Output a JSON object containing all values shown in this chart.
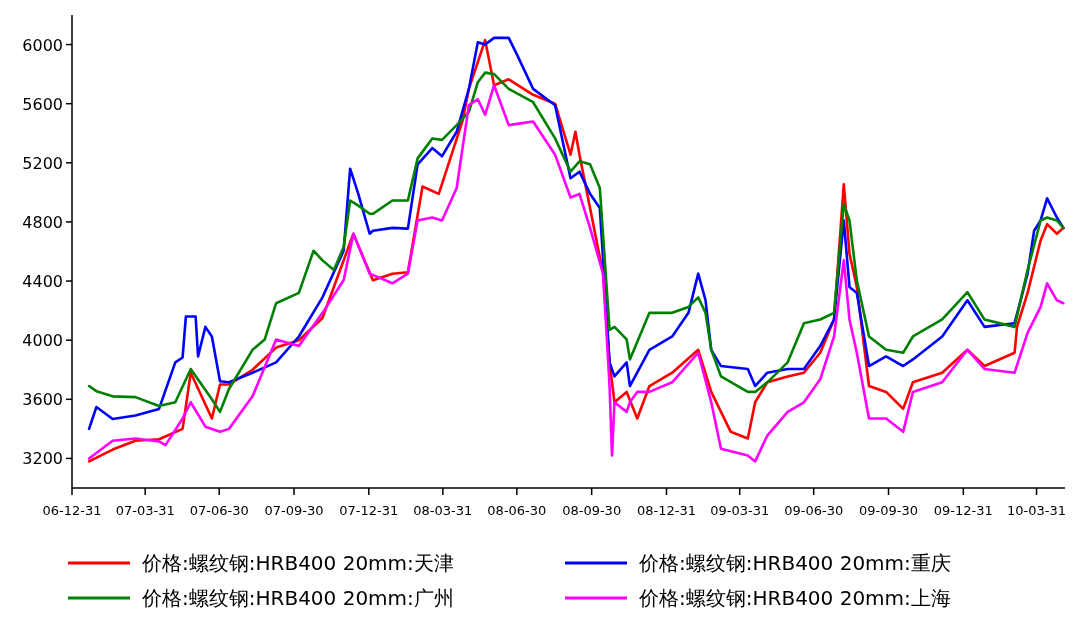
{
  "chart_data": {
    "type": "line",
    "xlim": [
      "2006-12-31",
      "2010-05-05"
    ],
    "ylim": [
      3000,
      6200
    ],
    "yticks": [
      3200,
      3600,
      4000,
      4400,
      4800,
      5200,
      5600,
      6000
    ],
    "xticks": [
      {
        "value": "2006-12-31",
        "label": "06-12-31"
      },
      {
        "value": "2007-03-31",
        "label": "07-03-31"
      },
      {
        "value": "2007-06-30",
        "label": "07-06-30"
      },
      {
        "value": "2007-09-30",
        "label": "07-09-30"
      },
      {
        "value": "2007-12-31",
        "label": "07-12-31"
      },
      {
        "value": "2008-03-31",
        "label": "08-03-31"
      },
      {
        "value": "2008-06-30",
        "label": "08-06-30"
      },
      {
        "value": "2008-09-30",
        "label": "08-09-30"
      },
      {
        "value": "2008-12-31",
        "label": "08-12-31"
      },
      {
        "value": "2009-03-31",
        "label": "09-03-31"
      },
      {
        "value": "2009-06-30",
        "label": "09-06-30"
      },
      {
        "value": "2009-09-30",
        "label": "09-09-30"
      },
      {
        "value": "2009-12-31",
        "label": "09-12-31"
      },
      {
        "value": "2010-03-31",
        "label": "10-03-31"
      }
    ],
    "legend": "bottom",
    "series": [
      {
        "name": "价格:螺纹钢:HRB400 20mm:天津",
        "color": "#ff0000",
        "x": [
          "2007-01-21",
          "2007-02-19",
          "2007-03-19",
          "2007-04-17",
          "2007-05-16",
          "2007-05-26",
          "2007-06-21",
          "2007-07-01",
          "2007-07-12",
          "2007-08-10",
          "2007-09-08",
          "2007-10-06",
          "2007-11-04",
          "2007-12-12",
          "2008-01-05",
          "2008-01-29",
          "2008-02-17",
          "2008-03-06",
          "2008-03-26",
          "2008-04-24",
          "2008-05-02",
          "2008-05-22",
          "2008-06-02",
          "2008-06-20",
          "2008-07-20",
          "2008-08-16",
          "2008-09-04",
          "2008-09-10",
          "2008-09-15",
          "2008-09-28",
          "2008-10-14",
          "2008-10-22",
          "2008-10-28",
          "2008-11-12",
          "2008-11-25",
          "2008-12-10",
          "2009-01-07",
          "2009-02-08",
          "2009-02-24",
          "2009-03-08",
          "2009-03-20",
          "2009-04-10",
          "2009-04-19",
          "2009-05-04",
          "2009-05-29",
          "2009-06-18",
          "2009-07-08",
          "2009-07-25",
          "2009-08-06",
          "2009-08-13",
          "2009-08-22",
          "2009-09-06",
          "2009-09-27",
          "2009-10-18",
          "2009-10-30",
          "2009-12-05",
          "2010-01-05",
          "2010-01-26",
          "2010-03-04",
          "2010-03-07",
          "2010-03-20",
          "2010-04-05",
          "2010-04-13",
          "2010-04-25",
          "2010-05-03"
        ],
        "values": [
          3180,
          3260,
          3320,
          3330,
          3400,
          3780,
          3470,
          3700,
          3700,
          3800,
          3950,
          4000,
          4150,
          4720,
          4405,
          4450,
          4460,
          5040,
          4990,
          5480,
          5700,
          6030,
          5725,
          5765,
          5660,
          5600,
          5255,
          5410,
          5255,
          4895,
          4450,
          3850,
          3580,
          3650,
          3470,
          3690,
          3780,
          3935,
          3650,
          3515,
          3380,
          3335,
          3580,
          3715,
          3755,
          3780,
          3915,
          4140,
          5055,
          4585,
          4360,
          3690,
          3650,
          3535,
          3715,
          3780,
          3935,
          3825,
          3915,
          4090,
          4320,
          4675,
          4785,
          4720,
          4760
        ]
      },
      {
        "name": "价格:螺纹钢:HRB400 20mm:重庆",
        "color": "#0000ff",
        "x": [
          "2007-01-21",
          "2007-01-30",
          "2007-02-19",
          "2007-03-19",
          "2007-04-17",
          "2007-05-07",
          "2007-05-16",
          "2007-05-20",
          "2007-06-01",
          "2007-06-04",
          "2007-06-13",
          "2007-06-21",
          "2007-07-01",
          "2007-07-12",
          "2007-08-10",
          "2007-09-08",
          "2007-10-06",
          "2007-11-04",
          "2007-11-30",
          "2007-12-08",
          "2007-12-18",
          "2008-01-01",
          "2008-01-05",
          "2008-01-29",
          "2008-02-17",
          "2008-02-29",
          "2008-03-18",
          "2008-03-30",
          "2008-04-17",
          "2008-05-02",
          "2008-05-13",
          "2008-05-22",
          "2008-06-02",
          "2008-06-20",
          "2008-06-29",
          "2008-07-20",
          "2008-08-16",
          "2008-09-04",
          "2008-09-15",
          "2008-09-28",
          "2008-10-10",
          "2008-10-22",
          "2008-10-28",
          "2008-11-12",
          "2008-11-16",
          "2008-12-10",
          "2009-01-07",
          "2009-01-27",
          "2009-02-08",
          "2009-02-17",
          "2009-02-24",
          "2009-03-08",
          "2009-04-10",
          "2009-04-19",
          "2009-05-04",
          "2009-05-29",
          "2009-06-18",
          "2009-07-08",
          "2009-07-25",
          "2009-08-06",
          "2009-08-13",
          "2009-08-22",
          "2009-09-06",
          "2009-09-27",
          "2009-10-18",
          "2009-10-30",
          "2009-12-05",
          "2010-01-05",
          "2010-01-26",
          "2010-03-04",
          "2010-03-20",
          "2010-03-28",
          "2010-04-05",
          "2010-04-13",
          "2010-04-25",
          "2010-05-03"
        ],
        "values": [
          3400,
          3548,
          3467,
          3490,
          3535,
          3850,
          3883,
          4160,
          4160,
          3890,
          4090,
          4025,
          3722,
          3715,
          3780,
          3850,
          4025,
          4290,
          4605,
          5160,
          4990,
          4720,
          4740,
          4760,
          4755,
          5190,
          5300,
          5245,
          5410,
          5700,
          6015,
          6000,
          6045,
          6045,
          5945,
          5700,
          5590,
          5095,
          5140,
          4990,
          4895,
          3850,
          3755,
          3850,
          3690,
          3935,
          4025,
          4185,
          4450,
          4270,
          3935,
          3825,
          3805,
          3690,
          3780,
          3805,
          3805,
          3960,
          4140,
          4810,
          4360,
          4320,
          3825,
          3890,
          3825,
          3870,
          4025,
          4270,
          4090,
          4115,
          4450,
          4740,
          4810,
          4960,
          4830,
          4760
        ]
      },
      {
        "name": "价格:螺纹钢:HRB400 20mm:广州",
        "color": "#008000",
        "x": [
          "2007-01-21",
          "2007-01-30",
          "2007-02-19",
          "2007-03-19",
          "2007-04-17",
          "2007-05-07",
          "2007-05-26",
          "2007-06-21",
          "2007-07-01",
          "2007-07-12",
          "2007-08-10",
          "2007-08-25",
          "2007-09-08",
          "2007-10-06",
          "2007-10-24",
          "2007-11-04",
          "2007-11-18",
          "2007-11-30",
          "2007-12-08",
          "2007-12-18",
          "2008-01-01",
          "2008-01-05",
          "2008-01-29",
          "2008-02-17",
          "2008-02-29",
          "2008-03-18",
          "2008-03-30",
          "2008-04-17",
          "2008-05-02",
          "2008-05-13",
          "2008-05-22",
          "2008-06-02",
          "2008-06-20",
          "2008-07-20",
          "2008-08-16",
          "2008-09-04",
          "2008-09-15",
          "2008-09-28",
          "2008-10-10",
          "2008-10-22",
          "2008-10-28",
          "2008-11-12",
          "2008-11-16",
          "2008-12-10",
          "2009-01-07",
          "2009-01-27",
          "2009-02-08",
          "2009-02-17",
          "2009-02-24",
          "2009-03-08",
          "2009-04-10",
          "2009-04-19",
          "2009-05-04",
          "2009-05-29",
          "2009-06-18",
          "2009-07-08",
          "2009-07-25",
          "2009-08-06",
          "2009-08-13",
          "2009-08-22",
          "2009-09-06",
          "2009-09-27",
          "2009-10-18",
          "2009-10-30",
          "2009-12-05",
          "2010-01-05",
          "2010-01-26",
          "2010-03-04",
          "2010-03-20",
          "2010-04-05",
          "2010-04-13",
          "2010-04-25",
          "2010-05-03"
        ],
        "values": [
          3690,
          3655,
          3620,
          3615,
          3555,
          3580,
          3805,
          3600,
          3515,
          3670,
          3935,
          4005,
          4250,
          4320,
          4605,
          4540,
          4475,
          4630,
          4945,
          4910,
          4855,
          4855,
          4945,
          4945,
          5230,
          5365,
          5355,
          5455,
          5545,
          5745,
          5810,
          5800,
          5700,
          5610,
          5365,
          5140,
          5210,
          5190,
          5030,
          4070,
          4090,
          4005,
          3870,
          4185,
          4185,
          4225,
          4290,
          4185,
          3935,
          3755,
          3650,
          3650,
          3715,
          3850,
          4115,
          4140,
          4185,
          4920,
          4810,
          4405,
          4025,
          3935,
          3915,
          4025,
          4140,
          4325,
          4140,
          4090,
          4475,
          4810,
          4830,
          4810,
          4760
        ]
      },
      {
        "name": "价格:螺纹钢:HRB400 20mm:上海",
        "color": "#ff00ff",
        "x": [
          "2007-01-21",
          "2007-02-19",
          "2007-03-19",
          "2007-04-17",
          "2007-04-25",
          "2007-05-16",
          "2007-05-26",
          "2007-06-13",
          "2007-07-01",
          "2007-07-12",
          "2007-08-10",
          "2007-09-08",
          "2007-10-06",
          "2007-11-04",
          "2007-11-30",
          "2007-12-12",
          "2008-01-01",
          "2008-01-29",
          "2008-02-17",
          "2008-02-29",
          "2008-03-18",
          "2008-03-30",
          "2008-04-17",
          "2008-05-02",
          "2008-05-13",
          "2008-05-22",
          "2008-06-02",
          "2008-06-20",
          "2008-07-20",
          "2008-08-16",
          "2008-09-04",
          "2008-09-15",
          "2008-09-28",
          "2008-10-14",
          "2008-10-22",
          "2008-10-25",
          "2008-10-28",
          "2008-11-12",
          "2008-11-16",
          "2008-11-25",
          "2008-12-10",
          "2009-01-07",
          "2009-02-08",
          "2009-02-24",
          "2009-03-08",
          "2009-04-10",
          "2009-04-19",
          "2009-05-04",
          "2009-05-29",
          "2009-06-18",
          "2009-07-08",
          "2009-07-25",
          "2009-08-06",
          "2009-08-13",
          "2009-08-22",
          "2009-09-06",
          "2009-09-27",
          "2009-10-18",
          "2009-10-30",
          "2009-12-05",
          "2010-01-05",
          "2010-01-26",
          "2010-03-04",
          "2010-03-20",
          "2010-04-05",
          "2010-04-13",
          "2010-04-25",
          "2010-05-03"
        ],
        "values": [
          3200,
          3320,
          3335,
          3315,
          3290,
          3470,
          3580,
          3415,
          3380,
          3400,
          3620,
          4005,
          3960,
          4185,
          4405,
          4720,
          4450,
          4385,
          4450,
          4810,
          4830,
          4810,
          5030,
          5590,
          5630,
          5525,
          5725,
          5455,
          5480,
          5255,
          4965,
          4990,
          4760,
          4450,
          3690,
          3220,
          3580,
          3515,
          3580,
          3650,
          3650,
          3715,
          3915,
          3580,
          3265,
          3220,
          3180,
          3355,
          3515,
          3580,
          3735,
          4025,
          4540,
          4140,
          3915,
          3470,
          3470,
          3380,
          3650,
          3715,
          3935,
          3805,
          3780,
          4050,
          4225,
          4385,
          4270,
          4250
        ]
      }
    ]
  }
}
